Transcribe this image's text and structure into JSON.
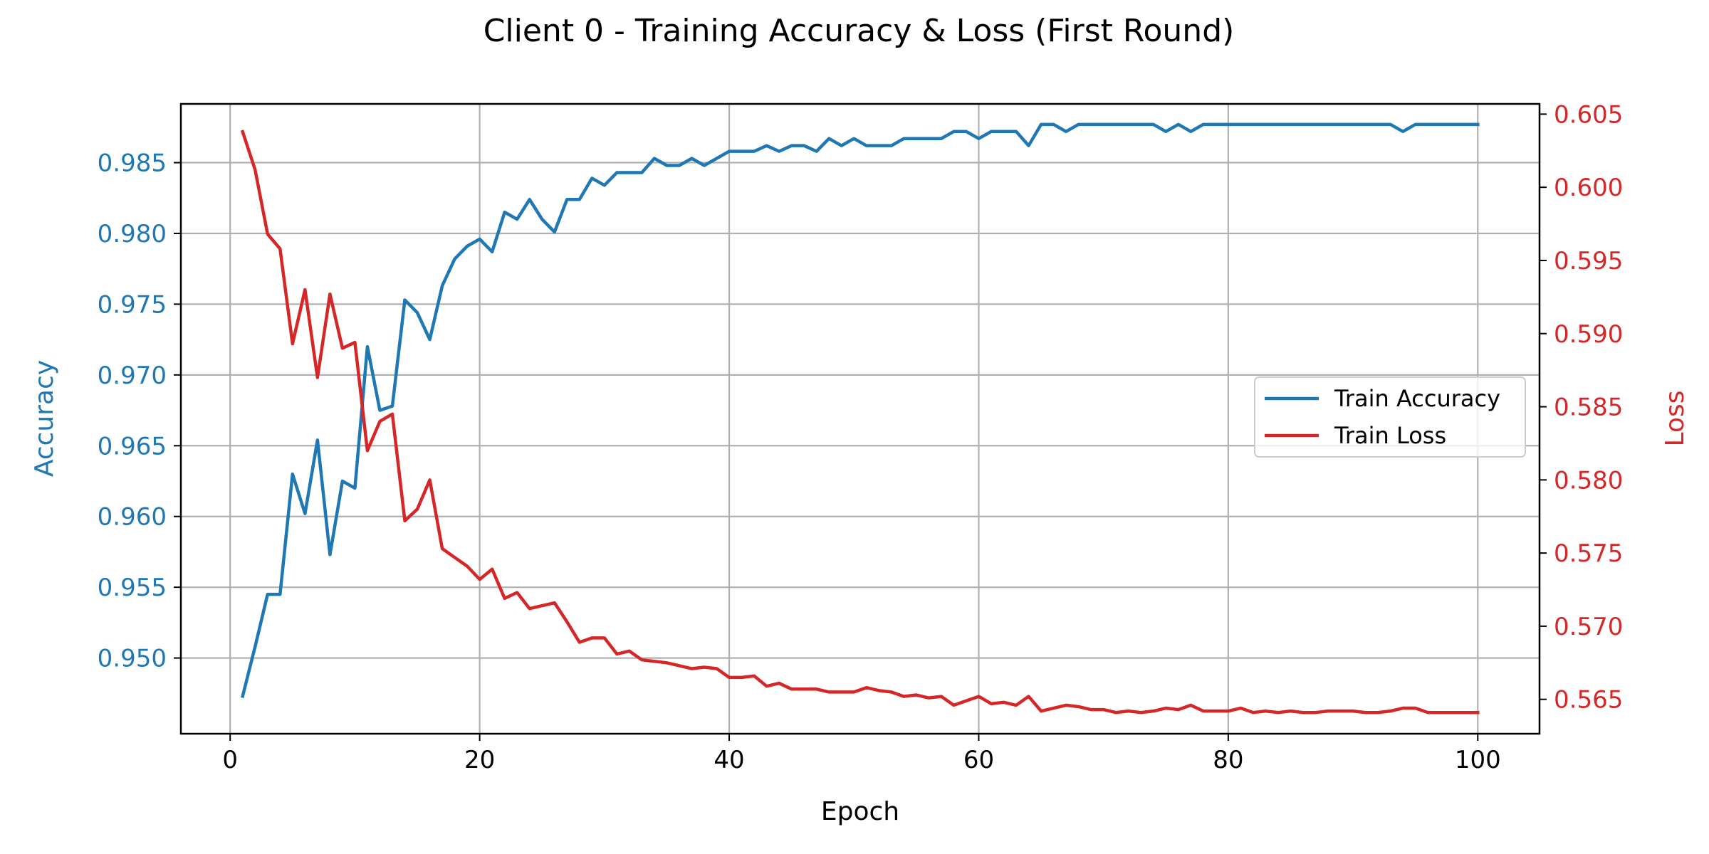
{
  "chart_data": {
    "type": "line",
    "title": "Client 0 - Training Accuracy & Loss (First Round)",
    "xlabel": "Epoch",
    "ylabel_left": "Accuracy",
    "ylabel_right": "Loss",
    "xlim": [
      -3.95,
      104.95
    ],
    "ylim_left": [
      0.94465,
      0.98915
    ],
    "ylim_right": [
      0.56265,
      0.6057
    ],
    "xticks": [
      0,
      20,
      40,
      60,
      80,
      100
    ],
    "yticks_left": [
      0.95,
      0.955,
      0.96,
      0.965,
      0.97,
      0.975,
      0.98,
      0.985
    ],
    "yticks_right": [
      0.565,
      0.57,
      0.575,
      0.58,
      0.585,
      0.59,
      0.595,
      0.6,
      0.605
    ],
    "grid": true,
    "legend_position": "center-right",
    "colors": {
      "accuracy": "#1f77b4",
      "loss": "#d62728"
    },
    "x": [
      1,
      2,
      3,
      4,
      5,
      6,
      7,
      8,
      9,
      10,
      11,
      12,
      13,
      14,
      15,
      16,
      17,
      18,
      19,
      20,
      21,
      22,
      23,
      24,
      25,
      26,
      27,
      28,
      29,
      30,
      31,
      32,
      33,
      34,
      35,
      36,
      37,
      38,
      39,
      40,
      41,
      42,
      43,
      44,
      45,
      46,
      47,
      48,
      49,
      50,
      51,
      52,
      53,
      54,
      55,
      56,
      57,
      58,
      59,
      60,
      61,
      62,
      63,
      64,
      65,
      66,
      67,
      68,
      69,
      70,
      71,
      72,
      73,
      74,
      75,
      76,
      77,
      78,
      79,
      80,
      81,
      82,
      83,
      84,
      85,
      86,
      87,
      88,
      89,
      90,
      91,
      92,
      93,
      94,
      95,
      96,
      97,
      98,
      99,
      100
    ],
    "series": [
      {
        "name": "Train Accuracy",
        "axis": "left",
        "values": [
          0.9473,
          0.9508,
          0.9545,
          0.9545,
          0.963,
          0.9602,
          0.9654,
          0.9573,
          0.9625,
          0.962,
          0.972,
          0.9675,
          0.9678,
          0.9753,
          0.9744,
          0.9725,
          0.9763,
          0.9782,
          0.9791,
          0.9796,
          0.9787,
          0.9815,
          0.981,
          0.9824,
          0.981,
          0.9801,
          0.9824,
          0.9824,
          0.9839,
          0.9834,
          0.9843,
          0.9843,
          0.9843,
          0.9853,
          0.9848,
          0.9848,
          0.9853,
          0.9848,
          0.9853,
          0.9858,
          0.9858,
          0.9858,
          0.9862,
          0.9858,
          0.9862,
          0.9862,
          0.9858,
          0.9867,
          0.9862,
          0.9867,
          0.9862,
          0.9862,
          0.9862,
          0.9867,
          0.9867,
          0.9867,
          0.9867,
          0.9872,
          0.9872,
          0.9867,
          0.9872,
          0.9872,
          0.9872,
          0.9862,
          0.9877,
          0.9877,
          0.9872,
          0.9877,
          0.9877,
          0.9877,
          0.9877,
          0.9877,
          0.9877,
          0.9877,
          0.9872,
          0.9877,
          0.9872,
          0.9877,
          0.9877,
          0.9877,
          0.9877,
          0.9877,
          0.9877,
          0.9877,
          0.9877,
          0.9877,
          0.9877,
          0.9877,
          0.9877,
          0.9877,
          0.9877,
          0.9877,
          0.9877,
          0.9872,
          0.9877,
          0.9877,
          0.9877,
          0.9877,
          0.9877,
          0.9877
        ]
      },
      {
        "name": "Train Loss",
        "axis": "right",
        "values": [
          0.6038,
          0.6012,
          0.5968,
          0.5958,
          0.5893,
          0.593,
          0.587,
          0.5927,
          0.589,
          0.5894,
          0.582,
          0.584,
          0.5845,
          0.5772,
          0.578,
          0.58,
          0.5753,
          0.5747,
          0.5741,
          0.5732,
          0.5739,
          0.5719,
          0.5723,
          0.5712,
          0.5714,
          0.5716,
          0.5703,
          0.5689,
          0.5692,
          0.5692,
          0.5681,
          0.5683,
          0.5677,
          0.5676,
          0.5675,
          0.5673,
          0.5671,
          0.5672,
          0.5671,
          0.5665,
          0.5665,
          0.5666,
          0.5659,
          0.5661,
          0.5657,
          0.5657,
          0.5657,
          0.5655,
          0.5655,
          0.5655,
          0.5658,
          0.5656,
          0.5655,
          0.5652,
          0.5653,
          0.5651,
          0.5652,
          0.5646,
          0.5649,
          0.5652,
          0.5647,
          0.5648,
          0.5646,
          0.5652,
          0.5642,
          0.5644,
          0.5646,
          0.5645,
          0.5643,
          0.5643,
          0.5641,
          0.5642,
          0.5641,
          0.5642,
          0.5644,
          0.5643,
          0.5646,
          0.5642,
          0.5642,
          0.5642,
          0.5644,
          0.5641,
          0.5642,
          0.5641,
          0.5642,
          0.5641,
          0.5641,
          0.5642,
          0.5642,
          0.5642,
          0.5641,
          0.5641,
          0.5642,
          0.5644,
          0.5644,
          0.5641,
          0.5641,
          0.5641,
          0.5641,
          0.5641
        ]
      }
    ]
  }
}
